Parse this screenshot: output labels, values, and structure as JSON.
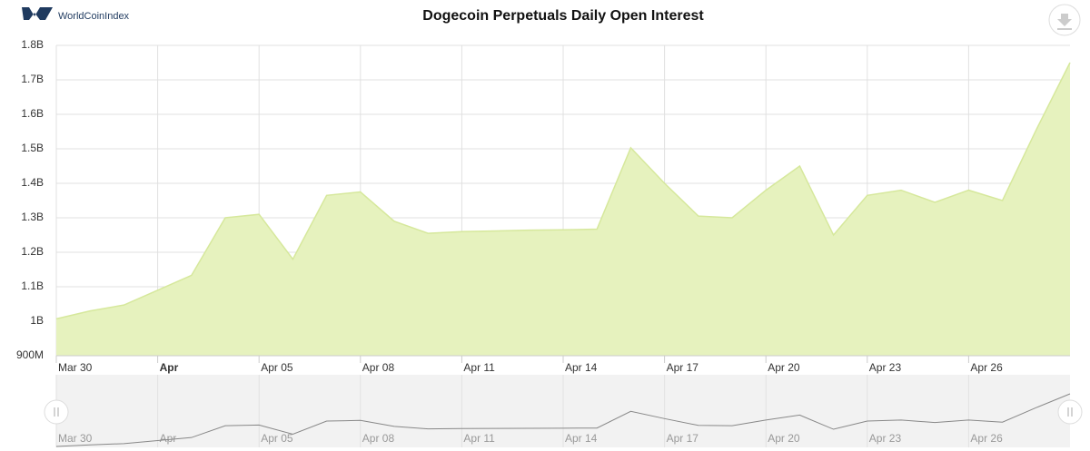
{
  "brand": "WorldCoinIndex",
  "chart_data": {
    "type": "area",
    "title": "Dogecoin Perpetuals Daily Open Interest",
    "categories": [
      "Mar 30",
      null,
      null,
      "Apr",
      null,
      null,
      "Apr 05",
      null,
      null,
      "Apr 08",
      null,
      null,
      "Apr 11",
      null,
      null,
      "Apr 14",
      null,
      null,
      "Apr 17",
      null,
      null,
      "Apr 20",
      null,
      null,
      "Apr 23",
      null,
      null,
      "Apr 26",
      null,
      null,
      null
    ],
    "values": [
      1007000000,
      1030000000,
      1047000000,
      1090000000,
      1133000000,
      1300000000,
      1310000000,
      1180000000,
      1365000000,
      1375000000,
      1290000000,
      1255000000,
      1260000000,
      1262000000,
      1264000000,
      1265000000,
      1267000000,
      1503000000,
      1400000000,
      1305000000,
      1300000000,
      1380000000,
      1450000000,
      1250000000,
      1365000000,
      1380000000,
      1345000000,
      1380000000,
      1350000000,
      1555000000,
      1750000000
    ],
    "color": "#e6f2be",
    "ylim": [
      900000000,
      1800000000
    ],
    "yticks": [
      {
        "value": 900000000,
        "label": "900M"
      },
      {
        "value": 1000000000,
        "label": "1B"
      },
      {
        "value": 1100000000,
        "label": "1.1B"
      },
      {
        "value": 1200000000,
        "label": "1.2B"
      },
      {
        "value": 1300000000,
        "label": "1.3B"
      },
      {
        "value": 1400000000,
        "label": "1.4B"
      },
      {
        "value": 1500000000,
        "label": "1.5B"
      },
      {
        "value": 1600000000,
        "label": "1.6B"
      },
      {
        "value": 1700000000,
        "label": "1.7B"
      },
      {
        "value": 1800000000,
        "label": "1.8B"
      }
    ],
    "grid": true
  }
}
